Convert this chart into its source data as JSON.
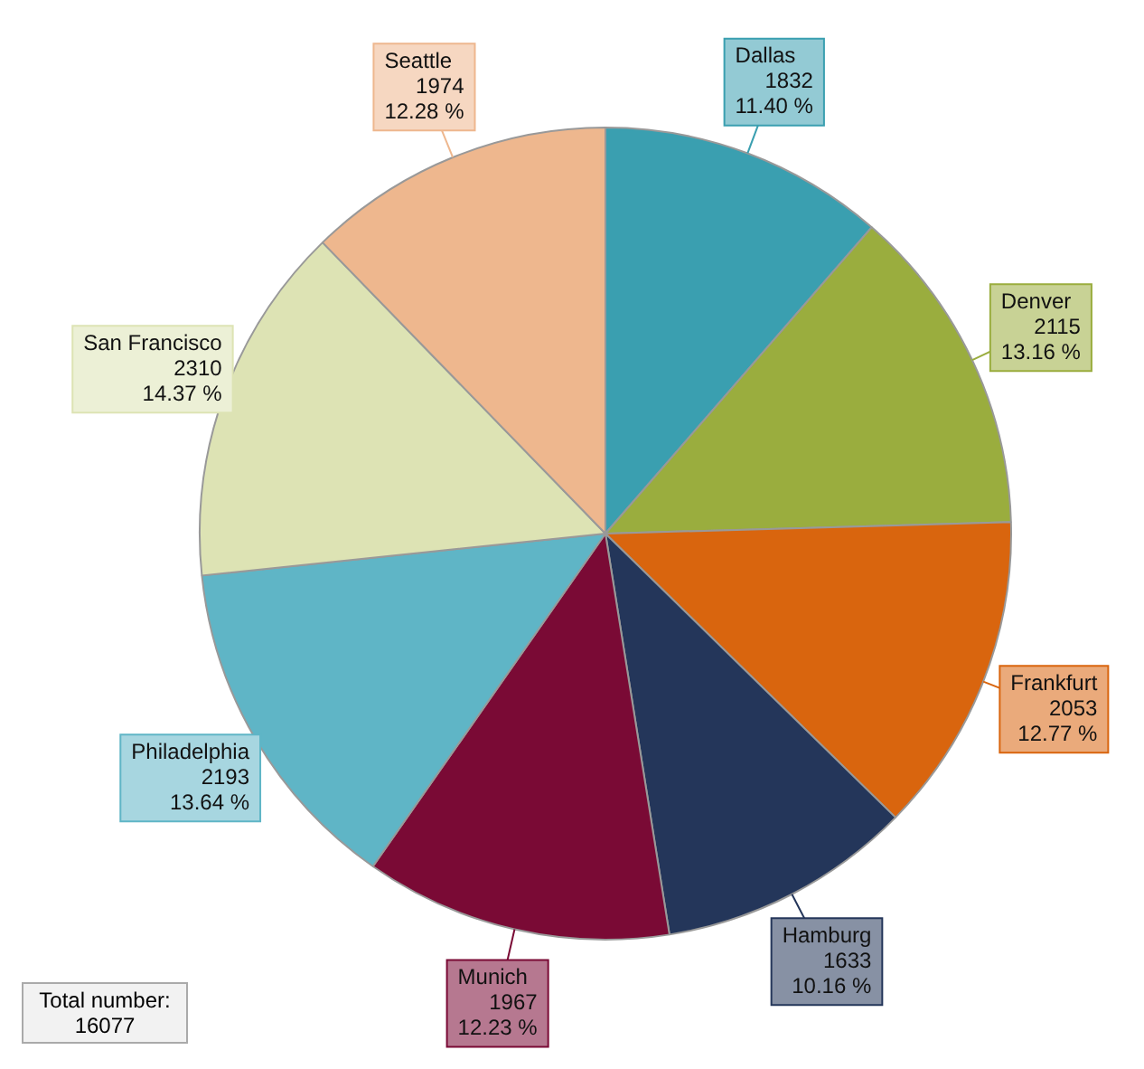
{
  "chart_data": {
    "type": "pie",
    "categories": [
      "Dallas",
      "Denver",
      "Frankfurt",
      "Hamburg",
      "Munich",
      "Philadelphia",
      "San Francisco",
      "Seattle"
    ],
    "values": [
      1832,
      2115,
      2053,
      1633,
      1967,
      2193,
      2310,
      1974
    ],
    "colors": [
      "#3a9fb0",
      "#9aad3e",
      "#d9650e",
      "#24365a",
      "#7a0a35",
      "#5fb5c6",
      "#dde3b4",
      "#eeb78e"
    ],
    "value_labels": [
      "1832\n11.40 %",
      "2115\n13.16 %",
      "2053\n12.77 %",
      "1633\n10.16 %",
      "1967\n12.23 %",
      "2193\n13.64 %",
      "2310\n14.37 %",
      "1974\n12.28 %"
    ],
    "legend": false,
    "annotations": [
      "Total number: 16077"
    ]
  }
}
